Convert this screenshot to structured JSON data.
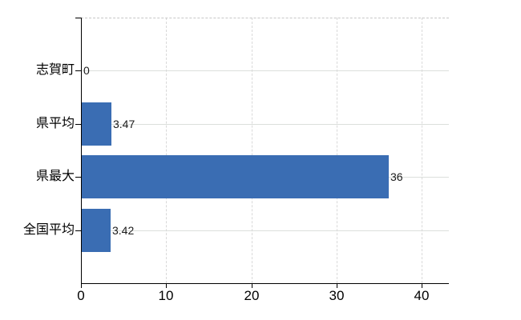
{
  "chart_data": {
    "type": "bar",
    "orientation": "horizontal",
    "title": "",
    "xlabel": "",
    "ylabel": "",
    "categories": [
      "志賀町",
      "県平均",
      "県最大",
      "全国平均"
    ],
    "values": [
      0,
      3.47,
      36,
      3.42
    ],
    "value_labels": [
      "0",
      "3.47",
      "36",
      "3.42"
    ],
    "xticks": [
      0,
      10,
      20,
      30,
      40
    ],
    "xlim": [
      0,
      43.2
    ],
    "grid": true,
    "legend_position": "none",
    "colors": {
      "bar": "#3a6db3",
      "hgrid": "#dcdfdc",
      "vgrid": "#d9d9d9",
      "plot_top_border": "#c8c8c8",
      "axis": "#000000",
      "text": "#000000",
      "background": "#ffffff"
    }
  }
}
